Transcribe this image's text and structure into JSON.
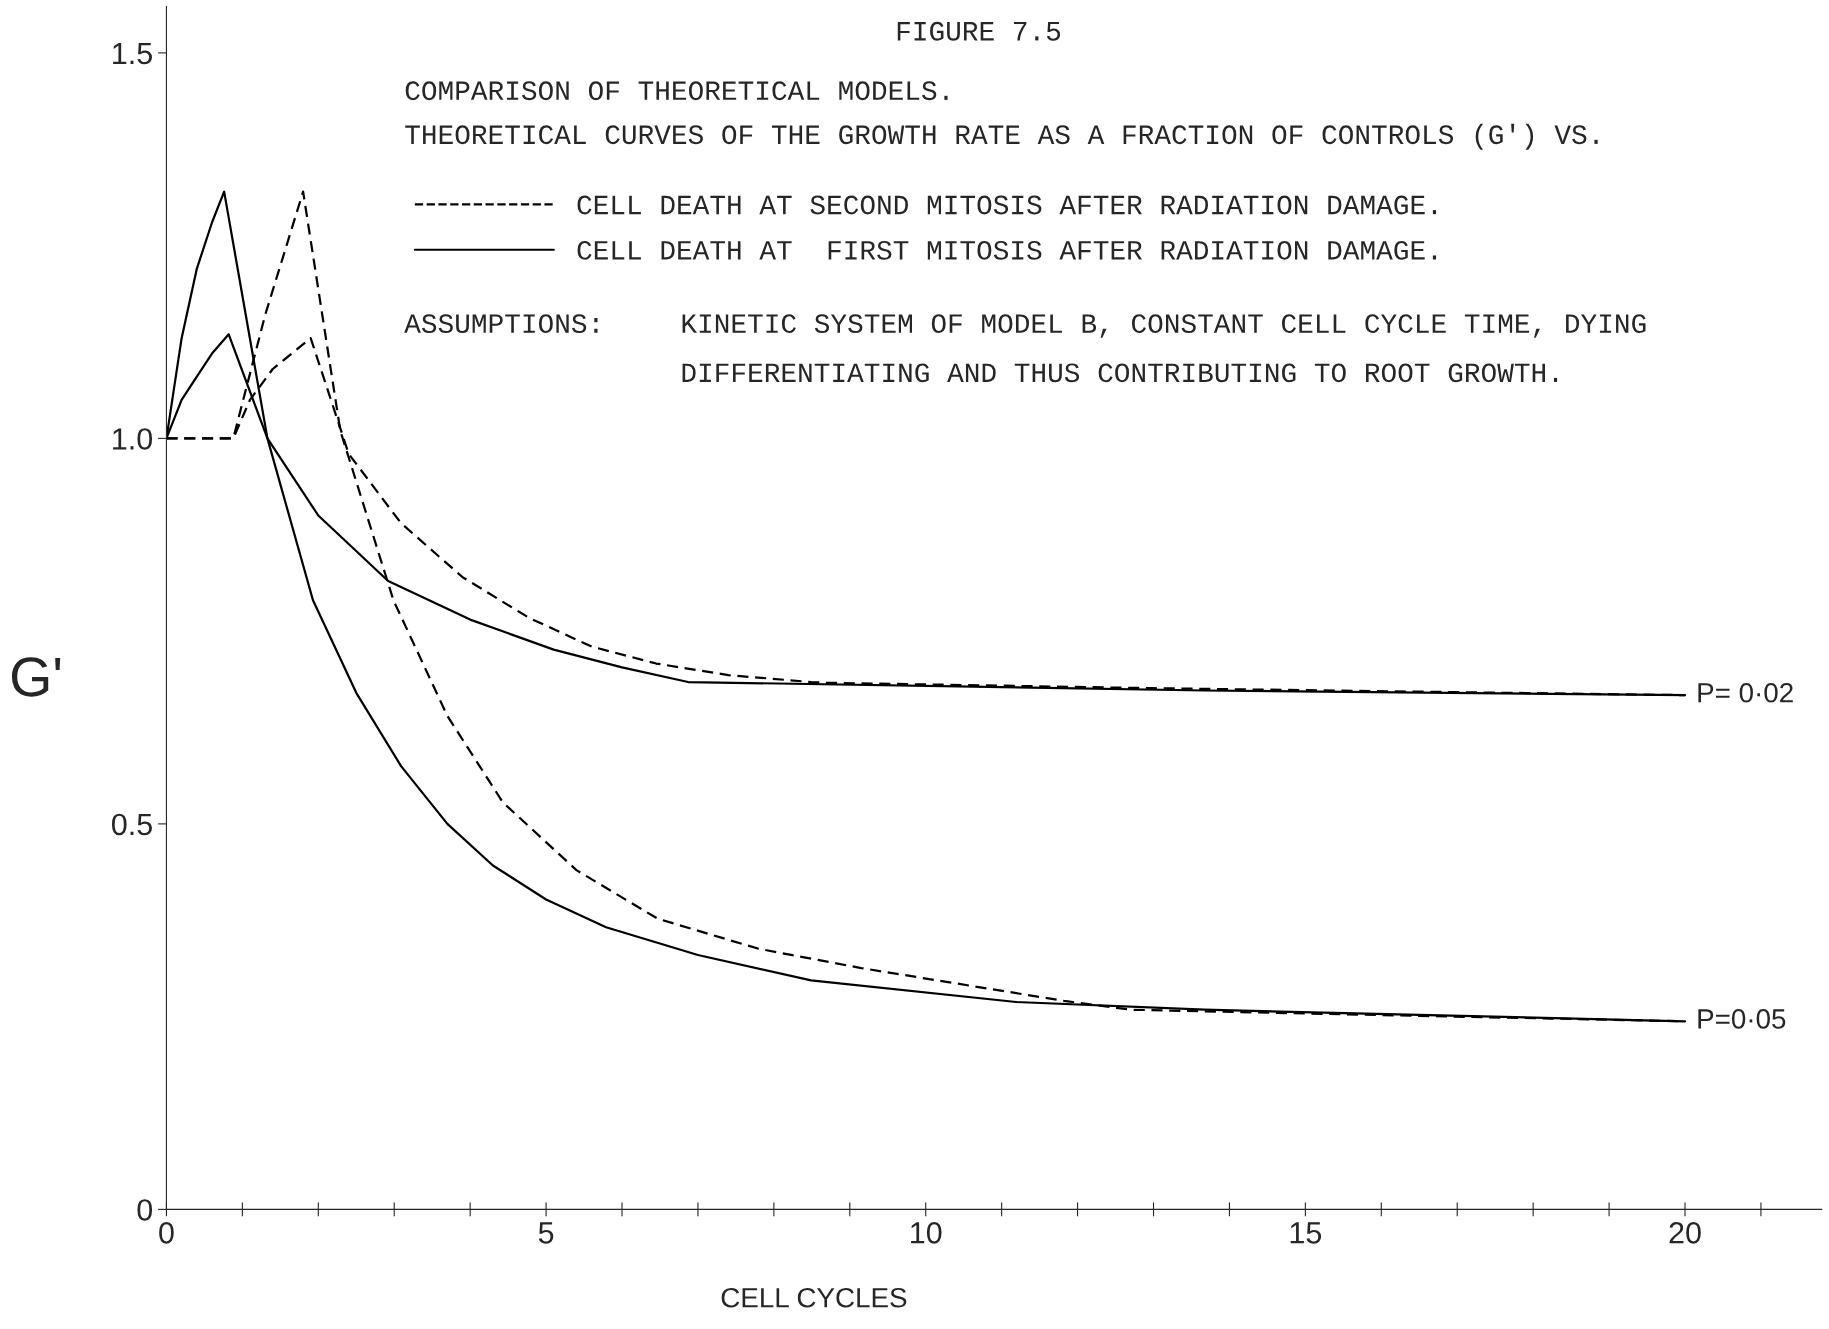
{
  "chart_data": {
    "type": "line",
    "title": "FIGURE 7.5",
    "subtitle": "COMPARISON OF THEORETICAL MODELS.\nTHEORETICAL CURVES OF THE GROWTH RATE AS A FRACTION OF CONTROLS (G') VS.",
    "xlabel": "CELL CYCLES",
    "ylabel": "G'",
    "series": [
      {
        "name": "CELL DEATH AT SECOND MITOSIS AFTER RADIATION DAMAGE.",
        "color": "#000000",
        "line_style": "dashed",
        "x": [
          0,
          0.88,
          1.3,
          1.8,
          2.29,
          2.99,
          3.7,
          4.43,
          5.4,
          6.47,
          7.8,
          9.15,
          11.85,
          12.7,
          16,
          20
        ],
        "values": [
          1.0,
          1.0,
          1.16,
          1.32,
          1.01,
          0.79,
          0.64,
          0.528,
          0.44,
          0.377,
          0.338,
          0.313,
          0.27,
          0.259,
          0.252,
          0.244
        ]
      },
      {
        "color": "#000000",
        "line_style": "dashed",
        "x": [
          0,
          0.88,
          1.1,
          1.4,
          1.9,
          2.4,
          3.09,
          3.9,
          4.78,
          5.6,
          6.45,
          7.4,
          8.49,
          8.7,
          13,
          20
        ],
        "values": [
          1.0,
          1.0,
          1.05,
          1.09,
          1.13,
          0.98,
          0.89,
          0.82,
          0.767,
          0.73,
          0.708,
          0.693,
          0.684,
          0.683,
          0.676,
          0.667
        ]
      },
      {
        "name": "CELL DEATH AT  FIRST MITOSIS AFTER RADIATION DAMAGE.",
        "color": "#000000",
        "line_style": "solid",
        "x": [
          0,
          0.2,
          0.4,
          0.6,
          0.76,
          1.33,
          1.93,
          2.5,
          3.09,
          3.7,
          4.3,
          5.0,
          5.79,
          7.0,
          8.49,
          11.19,
          13.67,
          20
        ],
        "values": [
          1.0,
          1.13,
          1.22,
          1.28,
          1.32,
          1.0,
          0.79,
          0.67,
          0.575,
          0.5,
          0.446,
          0.402,
          0.366,
          0.33,
          0.297,
          0.269,
          0.259,
          0.244
        ]
      },
      {
        "color": "#000000",
        "line_style": "solid",
        "x": [
          0,
          0.2,
          0.4,
          0.6,
          0.82,
          1.33,
          2.0,
          2.92,
          4.0,
          5.1,
          6.0,
          6.87,
          13.67,
          20
        ],
        "values": [
          1.0,
          1.05,
          1.08,
          1.11,
          1.135,
          1.0,
          0.9,
          0.815,
          0.765,
          0.726,
          0.703,
          0.684,
          0.673,
          0.667
        ]
      }
    ],
    "annotations": [
      "ASSUMPTIONS:",
      "KINETIC SYSTEM OF MODEL B, CONSTANT CELL CYCLE TIME, DYING",
      "DIFFERENTIATING AND THUS CONTRIBUTING TO ROOT GROWTH.",
      {
        "text": "P= 0·02",
        "x": 20,
        "y": 0.667
      },
      {
        "text": "P=0·05",
        "x": 20,
        "y": 0.244
      }
    ],
    "xlim": [
      0,
      21.8
    ],
    "ylim": [
      0,
      1.56
    ],
    "xticks": [
      0,
      {
        "value": 1,
        "label": null
      },
      {
        "value": 2,
        "label": null
      },
      {
        "value": 3,
        "label": null
      },
      {
        "value": 4,
        "label": null
      },
      5,
      {
        "value": 6,
        "label": null
      },
      {
        "value": 7,
        "label": null
      },
      {
        "value": 8,
        "label": null
      },
      {
        "value": 9,
        "label": null
      },
      10,
      {
        "value": 11,
        "label": null
      },
      {
        "value": 12,
        "label": null
      },
      {
        "value": 13,
        "label": null
      },
      {
        "value": 14,
        "label": null
      },
      15,
      {
        "value": 16,
        "label": null
      },
      {
        "value": 17,
        "label": null
      },
      {
        "value": 18,
        "label": null
      },
      {
        "value": 19,
        "label": null
      },
      20,
      {
        "value": 21,
        "label": null
      }
    ],
    "yticks": [
      0,
      0.5,
      {
        "value": 1.0,
        "label": "1.0"
      },
      1.5
    ],
    "legend": "top",
    "grid": false
  }
}
